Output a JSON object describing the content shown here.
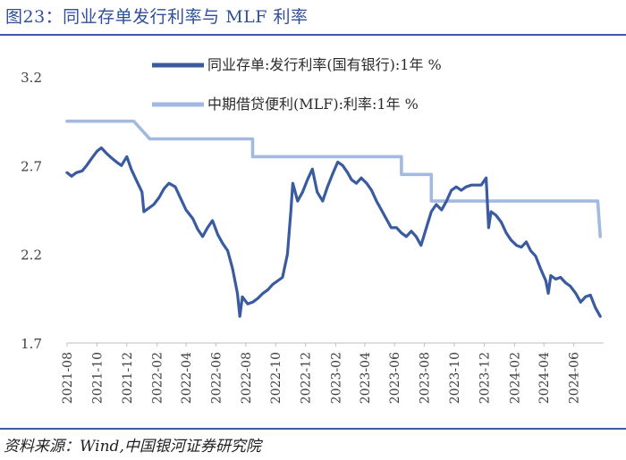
{
  "title": "图23：同业存单发行利率与 MLF 利率",
  "source": "资料来源：Wind,中国银河证券研究院",
  "chart_data": {
    "type": "line",
    "title": "图23：同业存单发行利率与 MLF 利率",
    "xlabel": "",
    "ylabel": "",
    "ylim": [
      1.7,
      3.2
    ],
    "yticks": [
      "3.2",
      "2.7",
      "2.2",
      "1.7"
    ],
    "ytick_values": [
      3.2,
      2.7,
      2.2,
      1.7
    ],
    "xlim": [
      "2021-08",
      "2024-08"
    ],
    "xticks": [
      "2021-08",
      "2021-10",
      "2021-12",
      "2022-02",
      "2022-04",
      "2022-06",
      "2022-08",
      "2022-10",
      "2022-12",
      "2023-02",
      "2023-04",
      "2023-06",
      "2023-08",
      "2023-10",
      "2023-12",
      "2024-02",
      "2024-04",
      "2024-06"
    ],
    "legend_position": "top-center",
    "series": [
      {
        "name": "同业存单:发行利率(国有银行):1年 %",
        "color": "#3a5ba0",
        "points": [
          [
            "2021-08-01",
            2.66
          ],
          [
            "2021-08-10",
            2.64
          ],
          [
            "2021-08-20",
            2.66
          ],
          [
            "2021-09-01",
            2.67
          ],
          [
            "2021-09-10",
            2.7
          ],
          [
            "2021-09-20",
            2.74
          ],
          [
            "2021-10-01",
            2.78
          ],
          [
            "2021-10-10",
            2.8
          ],
          [
            "2021-10-20",
            2.77
          ],
          [
            "2021-11-01",
            2.74
          ],
          [
            "2021-11-10",
            2.72
          ],
          [
            "2021-11-20",
            2.7
          ],
          [
            "2021-12-01",
            2.75
          ],
          [
            "2021-12-10",
            2.68
          ],
          [
            "2021-12-20",
            2.62
          ],
          [
            "2022-01-01",
            2.55
          ],
          [
            "2022-01-05",
            2.44
          ],
          [
            "2022-01-15",
            2.46
          ],
          [
            "2022-01-25",
            2.48
          ],
          [
            "2022-02-05",
            2.52
          ],
          [
            "2022-02-15",
            2.57
          ],
          [
            "2022-02-25",
            2.6
          ],
          [
            "2022-03-10",
            2.58
          ],
          [
            "2022-03-20",
            2.52
          ],
          [
            "2022-04-01",
            2.45
          ],
          [
            "2022-04-15",
            2.4
          ],
          [
            "2022-04-25",
            2.34
          ],
          [
            "2022-05-05",
            2.3
          ],
          [
            "2022-05-15",
            2.35
          ],
          [
            "2022-05-25",
            2.39
          ],
          [
            "2022-06-05",
            2.31
          ],
          [
            "2022-06-15",
            2.26
          ],
          [
            "2022-06-25",
            2.22
          ],
          [
            "2022-07-05",
            2.12
          ],
          [
            "2022-07-15",
            1.98
          ],
          [
            "2022-07-20",
            1.85
          ],
          [
            "2022-07-25",
            1.96
          ],
          [
            "2022-08-05",
            1.92
          ],
          [
            "2022-08-15",
            1.93
          ],
          [
            "2022-08-25",
            1.95
          ],
          [
            "2022-09-05",
            1.98
          ],
          [
            "2022-09-15",
            2.0
          ],
          [
            "2022-09-25",
            2.03
          ],
          [
            "2022-10-05",
            2.05
          ],
          [
            "2022-10-15",
            2.07
          ],
          [
            "2022-10-25",
            2.2
          ],
          [
            "2022-11-01",
            2.44
          ],
          [
            "2022-11-05",
            2.6
          ],
          [
            "2022-11-15",
            2.5
          ],
          [
            "2022-11-25",
            2.55
          ],
          [
            "2022-12-05",
            2.62
          ],
          [
            "2022-12-15",
            2.68
          ],
          [
            "2022-12-25",
            2.55
          ],
          [
            "2023-01-05",
            2.5
          ],
          [
            "2023-01-15",
            2.58
          ],
          [
            "2023-01-25",
            2.65
          ],
          [
            "2023-02-05",
            2.72
          ],
          [
            "2023-02-15",
            2.7
          ],
          [
            "2023-02-25",
            2.66
          ],
          [
            "2023-03-05",
            2.62
          ],
          [
            "2023-03-15",
            2.6
          ],
          [
            "2023-03-25",
            2.63
          ],
          [
            "2023-04-05",
            2.6
          ],
          [
            "2023-04-15",
            2.56
          ],
          [
            "2023-04-25",
            2.5
          ],
          [
            "2023-05-05",
            2.45
          ],
          [
            "2023-05-15",
            2.4
          ],
          [
            "2023-05-25",
            2.35
          ],
          [
            "2023-06-05",
            2.35
          ],
          [
            "2023-06-15",
            2.32
          ],
          [
            "2023-06-25",
            2.3
          ],
          [
            "2023-07-05",
            2.33
          ],
          [
            "2023-07-15",
            2.3
          ],
          [
            "2023-07-25",
            2.25
          ],
          [
            "2023-08-05",
            2.35
          ],
          [
            "2023-08-15",
            2.44
          ],
          [
            "2023-08-25",
            2.48
          ],
          [
            "2023-09-05",
            2.45
          ],
          [
            "2023-09-15",
            2.5
          ],
          [
            "2023-09-25",
            2.56
          ],
          [
            "2023-10-05",
            2.58
          ],
          [
            "2023-10-15",
            2.56
          ],
          [
            "2023-10-25",
            2.58
          ],
          [
            "2023-11-05",
            2.59
          ],
          [
            "2023-11-15",
            2.59
          ],
          [
            "2023-11-25",
            2.59
          ],
          [
            "2023-12-05",
            2.63
          ],
          [
            "2023-12-10",
            2.35
          ],
          [
            "2023-12-15",
            2.44
          ],
          [
            "2023-12-25",
            2.42
          ],
          [
            "2024-01-05",
            2.38
          ],
          [
            "2024-01-15",
            2.32
          ],
          [
            "2024-01-25",
            2.28
          ],
          [
            "2024-02-05",
            2.25
          ],
          [
            "2024-02-15",
            2.24
          ],
          [
            "2024-02-25",
            2.27
          ],
          [
            "2024-03-05",
            2.22
          ],
          [
            "2024-03-15",
            2.19
          ],
          [
            "2024-03-25",
            2.12
          ],
          [
            "2024-04-05",
            2.05
          ],
          [
            "2024-04-10",
            1.98
          ],
          [
            "2024-04-15",
            2.08
          ],
          [
            "2024-04-25",
            2.06
          ],
          [
            "2024-05-05",
            2.07
          ],
          [
            "2024-05-15",
            2.04
          ],
          [
            "2024-05-25",
            2.02
          ],
          [
            "2024-06-05",
            1.98
          ],
          [
            "2024-06-15",
            1.93
          ],
          [
            "2024-06-25",
            1.96
          ],
          [
            "2024-07-05",
            1.97
          ],
          [
            "2024-07-15",
            1.9
          ],
          [
            "2024-07-25",
            1.85
          ]
        ]
      },
      {
        "name": "中期借贷便利(MLF):利率:1年 %",
        "color": "#a3b9e0",
        "points": [
          [
            "2021-08-01",
            2.95
          ],
          [
            "2021-12-15",
            2.95
          ],
          [
            "2022-01-17",
            2.85
          ],
          [
            "2022-08-15",
            2.85
          ],
          [
            "2022-08-15",
            2.75
          ],
          [
            "2023-06-15",
            2.75
          ],
          [
            "2023-06-15",
            2.65
          ],
          [
            "2023-08-15",
            2.65
          ],
          [
            "2023-08-15",
            2.5
          ],
          [
            "2024-07-20",
            2.5
          ],
          [
            "2024-07-25",
            2.3
          ]
        ]
      }
    ]
  }
}
